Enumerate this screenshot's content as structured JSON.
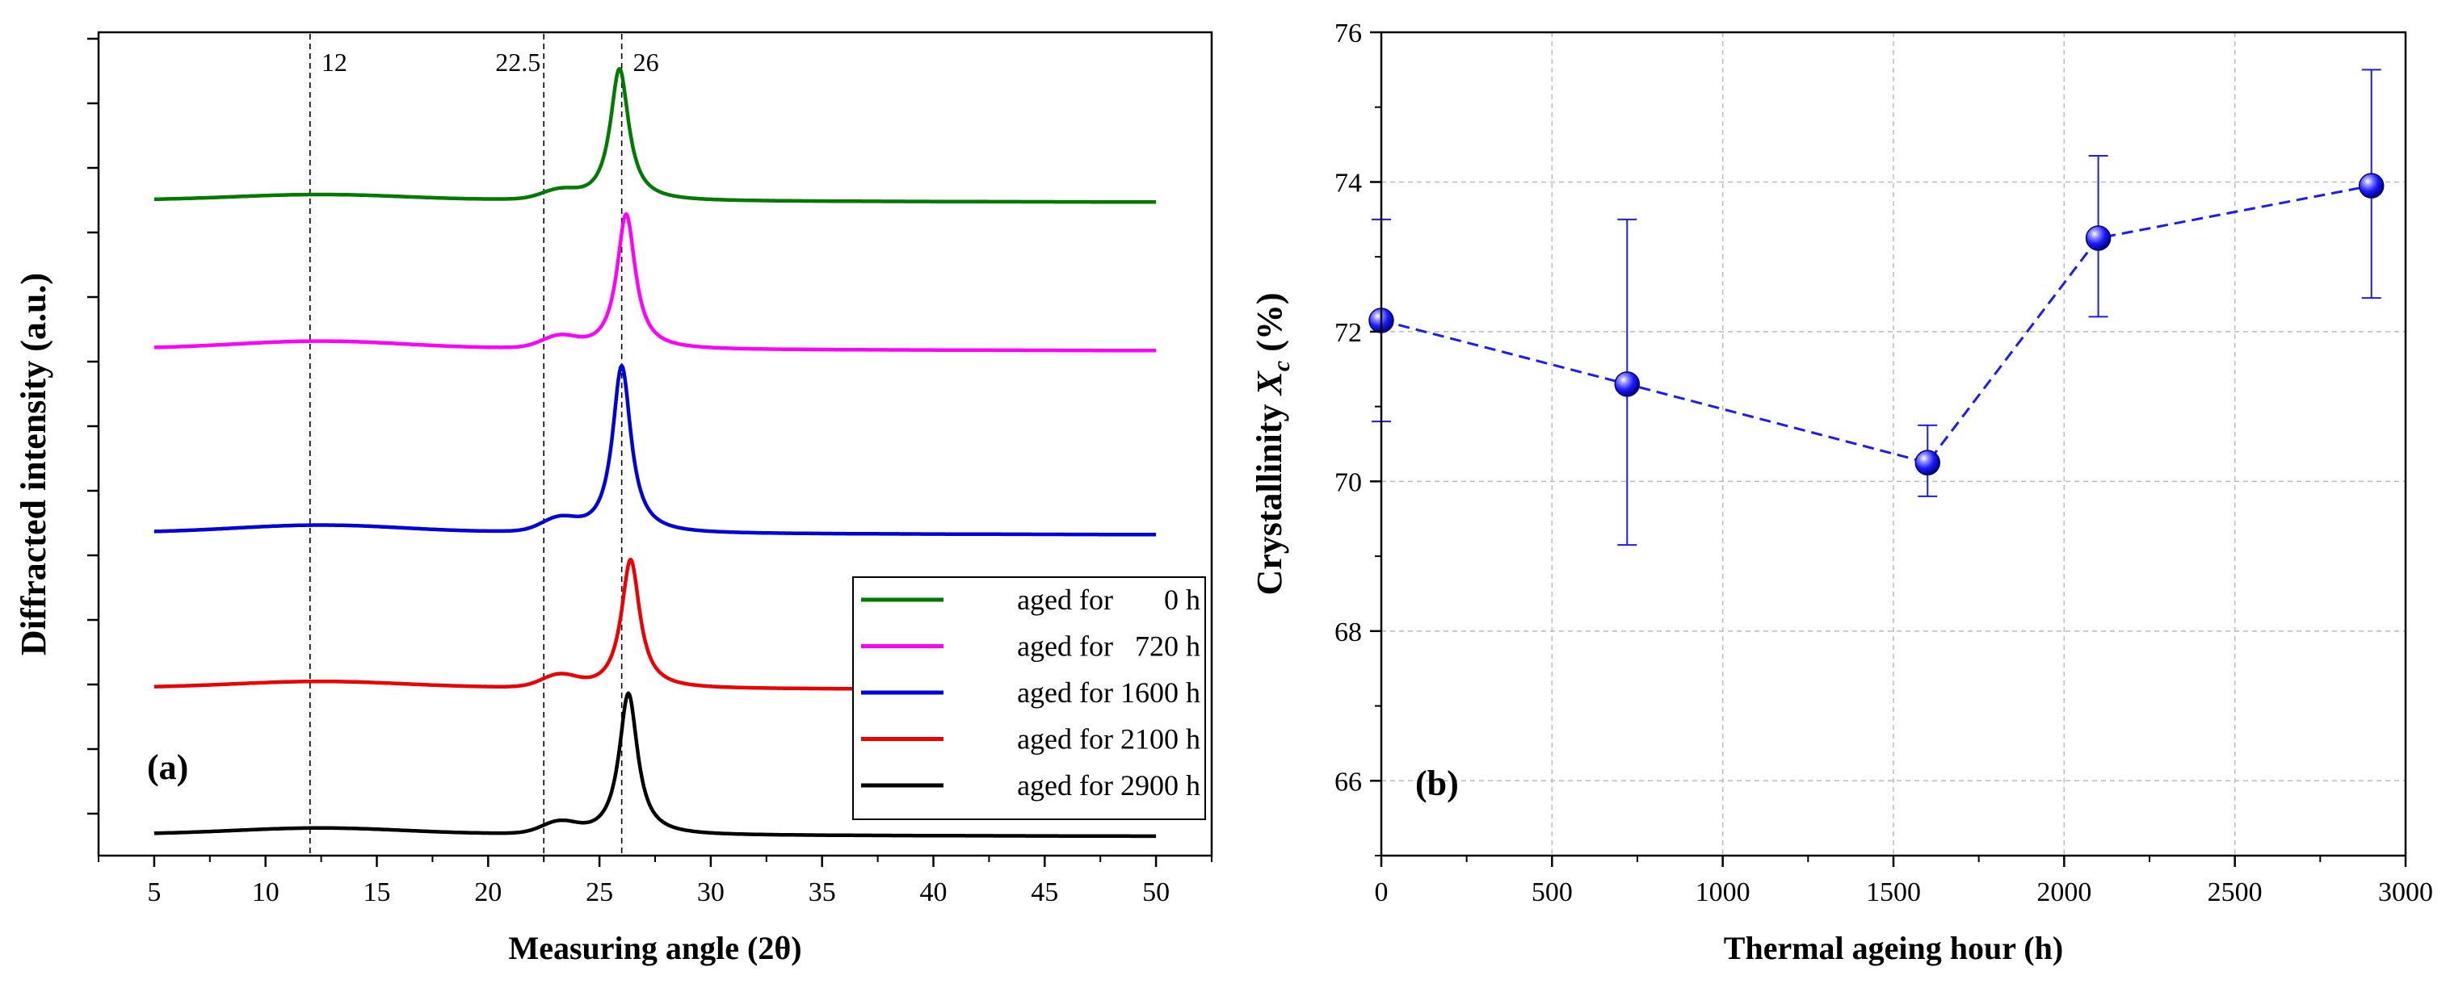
{
  "colors": {
    "aged_0": "#007a00",
    "aged_720": "#ff00ff",
    "aged_1600": "#0000dd",
    "aged_2100": "#ee0000",
    "aged_2900": "#000000",
    "marker": "#1a1aff",
    "axis": "#000000",
    "grid": "#bbbbbb"
  },
  "chart_data": [
    {
      "type": "line",
      "panel_label": "(a)",
      "xlabel": "Measuring angle (2θ)",
      "ylabel": "Diffracted intensity (a.u.)",
      "xlim": [
        2.5,
        52.5
      ],
      "ylim": [
        0,
        12.5
      ],
      "x_ticks": [
        5,
        10,
        15,
        20,
        25,
        30,
        35,
        40,
        45,
        50
      ],
      "x_tick_labels": [
        "5",
        "10",
        "15",
        "20",
        "25",
        "30",
        "35",
        "40",
        "45",
        "50"
      ],
      "y_ticks_unlabeled": [
        0.4,
        1.4,
        2.4,
        3.4,
        4.4,
        5.4,
        6.4,
        7.4,
        8.4,
        9.4,
        10.4,
        11.4,
        12.4
      ],
      "reference_lines": [
        {
          "x": 12,
          "label": "12"
        },
        {
          "x": 22.5,
          "label": "22.5"
        },
        {
          "x": 26,
          "label": "26"
        }
      ],
      "series": [
        {
          "name": "aged for       0 h",
          "color_key": "aged_0",
          "baseline": 9.9,
          "halo_height": 0.09,
          "shoulder_height": 0.13,
          "peak_center": 25.9,
          "peak_height": 2.05,
          "peak_width": 0.5
        },
        {
          "name": "aged for   720 h",
          "color_key": "aged_720",
          "baseline": 7.6,
          "halo_height": 0.12,
          "shoulder_height": 0.17,
          "peak_center": 26.2,
          "peak_height": 2.1,
          "peak_width": 0.5
        },
        {
          "name": "aged for 1600 h",
          "color_key": "aged_1600",
          "baseline": 4.75,
          "halo_height": 0.12,
          "shoulder_height": 0.19,
          "peak_center": 26.0,
          "peak_height": 2.6,
          "peak_width": 0.5
        },
        {
          "name": "aged for 2100 h",
          "color_key": "aged_2100",
          "baseline": 2.35,
          "halo_height": 0.1,
          "shoulder_height": 0.18,
          "peak_center": 26.4,
          "peak_height": 2.0,
          "peak_width": 0.5
        },
        {
          "name": "aged for 2900 h",
          "color_key": "aged_2900",
          "baseline": 0.08,
          "halo_height": 0.1,
          "shoulder_height": 0.17,
          "peak_center": 26.3,
          "peak_height": 2.2,
          "peak_width": 0.5
        }
      ],
      "legend_position": "bottom-right"
    },
    {
      "type": "scatter",
      "panel_label": "(b)",
      "xlabel": "Thermal ageing hour (h)",
      "ylabel_prefix": "Crystallinity ",
      "ylabel_symbol": "X",
      "ylabel_subscript": "c",
      "ylabel_suffix": " (%)",
      "xlim": [
        0,
        3000
      ],
      "ylim": [
        65,
        76
      ],
      "x_ticks": [
        0,
        500,
        1000,
        1500,
        2000,
        2500,
        3000
      ],
      "x_tick_labels": [
        "0",
        "500",
        "1000",
        "1500",
        "2000",
        "2500",
        "3000"
      ],
      "y_ticks": [
        66,
        68,
        70,
        72,
        74,
        76
      ],
      "y_tick_labels": [
        "66",
        "68",
        "70",
        "72",
        "74",
        "76"
      ],
      "grid": true,
      "connect_points": "dashed",
      "points": [
        {
          "x": 0,
          "y": 72.15,
          "err_low": 70.8,
          "err_high": 73.5
        },
        {
          "x": 720,
          "y": 71.3,
          "err_low": 69.15,
          "err_high": 73.5
        },
        {
          "x": 1600,
          "y": 70.25,
          "err_low": 69.8,
          "err_high": 70.75
        },
        {
          "x": 2100,
          "y": 73.25,
          "err_low": 72.2,
          "err_high": 74.35
        },
        {
          "x": 2900,
          "y": 73.95,
          "err_low": 72.45,
          "err_high": 75.5
        }
      ]
    }
  ]
}
